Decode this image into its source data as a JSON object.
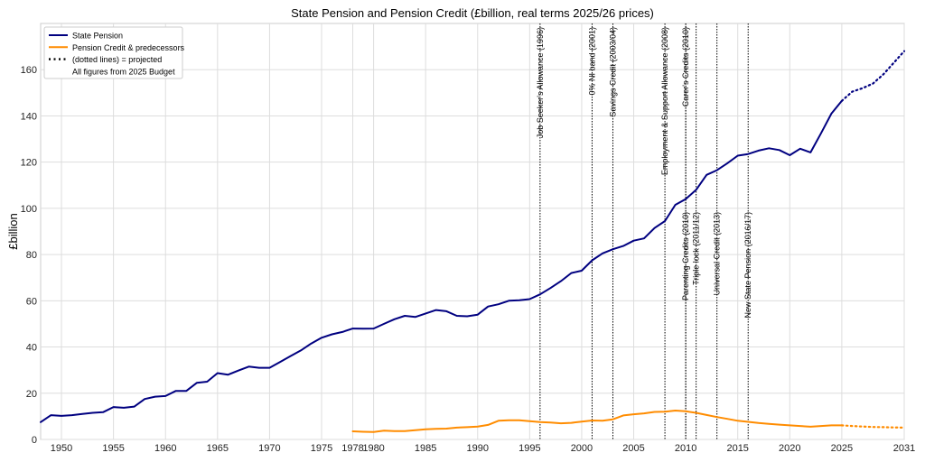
{
  "chart_data": {
    "type": "line",
    "title": "State Pension and Pension Credit (£billion, real terms 2025/26 prices)",
    "xlabel": "",
    "ylabel": "£billion",
    "xlim": [
      1948,
      2031
    ],
    "ylim": [
      0,
      180
    ],
    "x_ticks": [
      1950,
      1955,
      1960,
      1965,
      1970,
      1975,
      1978,
      1980,
      1985,
      1990,
      1995,
      2000,
      2005,
      2010,
      2015,
      2020,
      2025,
      2031
    ],
    "y_ticks": [
      0,
      20,
      40,
      60,
      80,
      100,
      120,
      140,
      160
    ],
    "grid": true,
    "legend_position": "top-left",
    "legend": [
      {
        "label": "State Pension",
        "color": "#000080",
        "style": "solid"
      },
      {
        "label": "Pension Credit & predecessors",
        "color": "#ff8c00",
        "style": "solid"
      },
      {
        "label": "(dotted lines) = projected",
        "color": "#000000",
        "style": "dotted"
      },
      {
        "label": "All figures from 2025 Budget",
        "color": "",
        "style": "none"
      }
    ],
    "series": [
      {
        "name": "State Pension",
        "color": "#000080",
        "x": [
          1948,
          1949,
          1950,
          1951,
          1952,
          1953,
          1954,
          1955,
          1956,
          1957,
          1958,
          1959,
          1960,
          1961,
          1962,
          1963,
          1964,
          1965,
          1966,
          1967,
          1968,
          1969,
          1970,
          1971,
          1972,
          1973,
          1974,
          1975,
          1976,
          1977,
          1978,
          1979,
          1980,
          1981,
          1982,
          1983,
          1984,
          1985,
          1986,
          1987,
          1988,
          1989,
          1990,
          1991,
          1992,
          1993,
          1994,
          1995,
          1996,
          1997,
          1998,
          1999,
          2000,
          2001,
          2002,
          2003,
          2004,
          2005,
          2006,
          2007,
          2008,
          2009,
          2010,
          2011,
          2012,
          2013,
          2014,
          2015,
          2016,
          2017,
          2018,
          2019,
          2020,
          2021,
          2022,
          2023,
          2024,
          2025
        ],
        "y": [
          7.5,
          10.5,
          10.2,
          10.5,
          11,
          11.5,
          11.8,
          14,
          13.7,
          14.2,
          17.5,
          18.5,
          18.8,
          21,
          21,
          24.5,
          25,
          28.7,
          28,
          29.8,
          31.5,
          31,
          31,
          33.5,
          36,
          38.5,
          41.5,
          44,
          45.5,
          46.5,
          48,
          47.9,
          48,
          50,
          52,
          53.5,
          53,
          54.5,
          56,
          55.5,
          53.5,
          53.3,
          54,
          57.5,
          58.5,
          60,
          60.2,
          60.7,
          62.8,
          65.5,
          68.5,
          72,
          73,
          77.5,
          80.5,
          82.3,
          83.7,
          86,
          87,
          91.5,
          94.5,
          101.5,
          104,
          108,
          114.5,
          116.5,
          119.5,
          122.8,
          123.5,
          125,
          126,
          125.2,
          123,
          125.8,
          124.2,
          132.5,
          141,
          146.5
        ]
      },
      {
        "name": "State Pension (projected)",
        "color": "#000080",
        "style": "dotted",
        "x": [
          2025,
          2026,
          2027,
          2028,
          2029,
          2030,
          2031
        ],
        "y": [
          146.5,
          150.5,
          152,
          154,
          158,
          163,
          168
        ]
      },
      {
        "name": "Pension Credit & predecessors",
        "color": "#ff8c00",
        "x": [
          1978,
          1979,
          1980,
          1981,
          1982,
          1983,
          1984,
          1985,
          1986,
          1987,
          1988,
          1989,
          1990,
          1991,
          1992,
          1993,
          1994,
          1995,
          1996,
          1997,
          1998,
          1999,
          2000,
          2001,
          2002,
          2003,
          2004,
          2005,
          2006,
          2007,
          2008,
          2009,
          2010,
          2011,
          2012,
          2013,
          2014,
          2015,
          2016,
          2017,
          2018,
          2019,
          2020,
          2021,
          2022,
          2023,
          2024,
          2025
        ],
        "y": [
          3.5,
          3.3,
          3.2,
          3.8,
          3.6,
          3.6,
          4.0,
          4.4,
          4.6,
          4.7,
          5.1,
          5.3,
          5.6,
          6.3,
          8.1,
          8.3,
          8.3,
          7.9,
          7.5,
          7.3,
          7.0,
          7.2,
          7.7,
          8.2,
          8.1,
          8.7,
          10.4,
          10.9,
          11.3,
          11.9,
          12.0,
          12.5,
          12.2,
          11.5,
          10.6,
          9.7,
          8.9,
          8.1,
          7.6,
          7.1,
          6.7,
          6.4,
          6.1,
          5.8,
          5.5,
          5.8,
          6.1,
          6.1
        ]
      },
      {
        "name": "Pension Credit & predecessors (projected)",
        "color": "#ff8c00",
        "style": "dotted",
        "x": [
          2025,
          2026,
          2027,
          2028,
          2029,
          2030,
          2031
        ],
        "y": [
          6.1,
          5.8,
          5.6,
          5.4,
          5.3,
          5.2,
          5.1
        ]
      }
    ],
    "annotations": [
      {
        "x": 1996,
        "label": "Job Seeker's Allowance (1996)",
        "anchor": "top"
      },
      {
        "x": 2001,
        "label": "0% NI band (2001)",
        "anchor": "top"
      },
      {
        "x": 2003,
        "label": "Savings Credit (2003/04)",
        "anchor": "top"
      },
      {
        "x": 2008,
        "label": "Employment & Support Allowance (2008)",
        "anchor": "top"
      },
      {
        "x": 2010,
        "label": "Carer's Credits (2010)",
        "anchor": "top"
      },
      {
        "x": 2010,
        "label": "Parenting Credits (2010)",
        "anchor": "bottom"
      },
      {
        "x": 2011,
        "label": "Triple lock (2011/12)",
        "anchor": "bottom"
      },
      {
        "x": 2013,
        "label": "Universal Credit (2013)",
        "anchor": "bottom"
      },
      {
        "x": 2016,
        "label": "New State Pension (2016/17)",
        "anchor": "bottom"
      }
    ]
  }
}
